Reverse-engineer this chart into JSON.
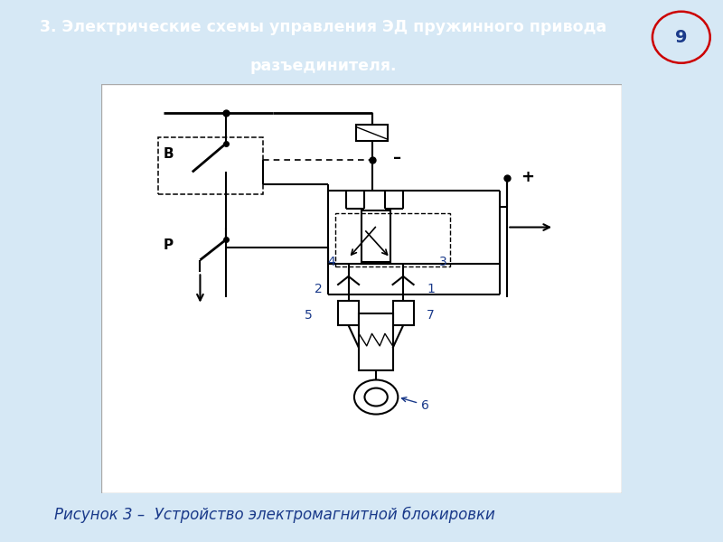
{
  "title_line1": "3. Электрические схемы управления ЭД пружинного привода",
  "title_line2": "разъединителя.",
  "title_bg": "#3A9090",
  "title_fg": "#FFFFFF",
  "page_num": "9",
  "caption": "Рисунок 3 –  Устройство электромагнитной блокировки",
  "bg_color": "#D6E8F5",
  "diagram_bg": "#FFFFFF",
  "label_color": "#1A3A8A",
  "line_color": "#000000"
}
